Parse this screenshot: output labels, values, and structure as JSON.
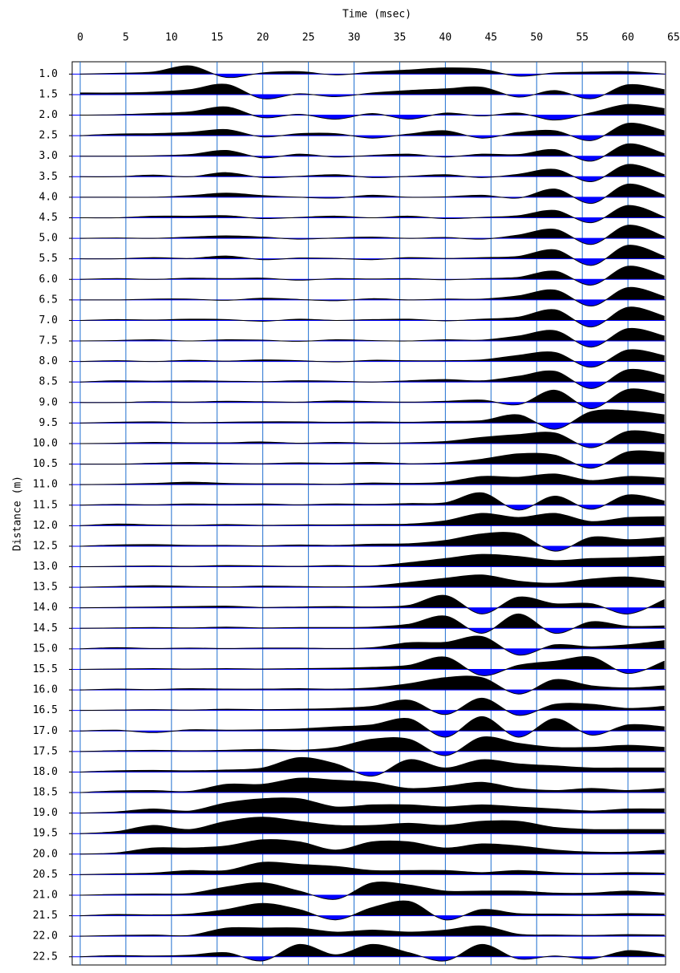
{
  "chart_data": {
    "type": "wiggle",
    "title": "Time (msec)",
    "y_label": "Distance (m)",
    "x": [
      0,
      4,
      8,
      12,
      16,
      20,
      24,
      28,
      32,
      36,
      40,
      44,
      48,
      52,
      56,
      60,
      64
    ],
    "xlim": [
      0,
      65
    ],
    "xticks": [
      0,
      5,
      10,
      15,
      20,
      25,
      30,
      35,
      40,
      45,
      50,
      55,
      60,
      65
    ],
    "ylim": [
      0.7,
      22.7
    ],
    "y_inverted": true,
    "yticks": [
      {
        "value": 1,
        "label": "1.0"
      },
      1.5,
      {
        "value": 2,
        "label": "2.0"
      },
      2.5,
      {
        "value": 3,
        "label": "3.0"
      },
      3.5,
      {
        "value": 4,
        "label": "4.0"
      },
      4.5,
      {
        "value": 5,
        "label": "5.0"
      },
      5.5,
      {
        "value": 6,
        "label": "6.0"
      },
      6.5,
      {
        "value": 7,
        "label": "7.0"
      },
      7.5,
      {
        "value": 8,
        "label": "8.0"
      },
      8.5,
      {
        "value": 9,
        "label": "9.0"
      },
      9.5,
      {
        "value": 10,
        "label": "10.0"
      },
      10.5,
      {
        "value": 11,
        "label": "11.0"
      },
      11.5,
      {
        "value": 12,
        "label": "12.0"
      },
      12.5,
      {
        "value": 13,
        "label": "13.0"
      },
      13.5,
      {
        "value": 14,
        "label": "14.0"
      },
      14.5,
      {
        "value": 15,
        "label": "15.0"
      },
      15.5,
      {
        "value": 16,
        "label": "16.0"
      },
      16.5,
      {
        "value": 17,
        "label": "17.0"
      },
      17.5,
      {
        "value": 18,
        "label": "18.0"
      },
      18.5,
      {
        "value": 19,
        "label": "19.0"
      },
      19.5,
      {
        "value": 20,
        "label": "20.0"
      },
      20.5,
      {
        "value": 21,
        "label": "21.0"
      },
      21.5,
      {
        "value": 22,
        "label": "22.0"
      },
      22.5
    ],
    "grid": true,
    "grid_color": "#1f6fd0",
    "baseline_color": "#0000ff",
    "positive_color": "#000000",
    "negative_color": "#0000ff",
    "line_color": "#000000",
    "traces": [
      {
        "distance": 1,
        "values": [
          0,
          0.02,
          0.05,
          0.2,
          -0.08,
          0.03,
          0.06,
          -0.02,
          0.05,
          0.1,
          0.15,
          0.12,
          -0.05,
          0.03,
          0.05,
          0.06,
          0
        ]
      },
      {
        "distance": 1.5,
        "values": [
          0.04,
          0.04,
          0.06,
          0.12,
          0.25,
          -0.1,
          0.02,
          -0.05,
          0.04,
          0.1,
          0.14,
          0.18,
          -0.06,
          0.1,
          -0.1,
          0.24,
          0.12
        ]
      },
      {
        "distance": 2,
        "values": [
          0,
          0.01,
          0.04,
          0.08,
          0.2,
          -0.06,
          0.02,
          -0.1,
          0.04,
          -0.1,
          0.05,
          -0.02,
          0.05,
          -0.12,
          0.06,
          0.26,
          0.16
        ]
      },
      {
        "distance": 2.5,
        "values": [
          0,
          0.04,
          0.05,
          0.08,
          0.15,
          -0.03,
          0.05,
          0.05,
          -0.06,
          0.04,
          0.12,
          -0.06,
          0.08,
          0.12,
          -0.12,
          0.3,
          0.12
        ]
      },
      {
        "distance": 3,
        "values": [
          0,
          0,
          0.01,
          0.04,
          0.14,
          -0.04,
          0.05,
          -0.02,
          0.02,
          0.05,
          -0.02,
          0.05,
          0.04,
          0.16,
          -0.12,
          0.3,
          0.06
        ]
      },
      {
        "distance": 3.5,
        "values": [
          0,
          0,
          0.04,
          0,
          0.1,
          -0.02,
          0.01,
          0.05,
          -0.02,
          0.01,
          0.05,
          -0.02,
          0.06,
          0.18,
          -0.12,
          0.3,
          0.05
        ]
      },
      {
        "distance": 4,
        "values": [
          0,
          0,
          0,
          0.04,
          0.1,
          0.04,
          0,
          -0.02,
          0.05,
          0,
          0.01,
          0.05,
          -0.02,
          0.2,
          -0.15,
          0.32,
          0.05
        ]
      },
      {
        "distance": 4.5,
        "values": [
          0,
          0,
          0.04,
          0.04,
          0.05,
          -0.02,
          0.01,
          0.04,
          0,
          0.04,
          -0.02,
          0.01,
          0.05,
          0.18,
          -0.12,
          0.3,
          0.02
        ]
      },
      {
        "distance": 5,
        "values": [
          0,
          0.01,
          0,
          0.03,
          0.06,
          0.03,
          -0.02,
          0.01,
          0.03,
          0,
          0.02,
          -0.02,
          0.08,
          0.22,
          -0.15,
          0.32,
          0.04
        ]
      },
      {
        "distance": 5.5,
        "values": [
          0,
          0,
          0.03,
          0.01,
          0.07,
          -0.02,
          0.02,
          0.01,
          -0.02,
          0.03,
          0.01,
          0.03,
          0.06,
          0.22,
          -0.16,
          0.33,
          0.06
        ]
      },
      {
        "distance": 6,
        "values": [
          0,
          0.02,
          0,
          0.03,
          0.02,
          0.03,
          -0.02,
          0.02,
          0.01,
          0.02,
          -0.01,
          0.02,
          0.05,
          0.2,
          -0.14,
          0.32,
          0.08
        ]
      },
      {
        "distance": 6.5,
        "values": [
          0,
          0,
          0.02,
          0.02,
          -0.01,
          0.04,
          0.01,
          -0.02,
          0.03,
          0,
          0.02,
          0.02,
          0.1,
          0.24,
          -0.15,
          0.3,
          0.08
        ]
      },
      {
        "distance": 7,
        "values": [
          0,
          0.02,
          0.01,
          0.03,
          0.02,
          -0.02,
          0.03,
          0,
          0.02,
          0.03,
          -0.01,
          0.03,
          0.08,
          0.26,
          -0.16,
          0.32,
          0.1
        ]
      },
      {
        "distance": 7.5,
        "values": [
          0,
          0.01,
          0.03,
          0,
          0.03,
          0.02,
          -0.01,
          0.03,
          0.01,
          0,
          0.03,
          0.02,
          0.12,
          0.25,
          -0.15,
          0.3,
          0.12
        ]
      },
      {
        "distance": 8,
        "values": [
          0,
          0.02,
          0,
          0.03,
          0.01,
          0.04,
          0.02,
          -0.01,
          0.03,
          0.02,
          0.02,
          0.04,
          0.15,
          0.22,
          -0.14,
          0.28,
          0.14
        ]
      },
      {
        "distance": 8.5,
        "values": [
          0,
          0.03,
          0.02,
          0.03,
          0.02,
          0.01,
          0.03,
          0.02,
          0,
          0.03,
          0.06,
          0.03,
          0.14,
          0.26,
          -0.16,
          0.3,
          0.16
        ]
      },
      {
        "distance": 9,
        "values": [
          0,
          0,
          0.02,
          0.01,
          0.03,
          0.02,
          0.01,
          0.04,
          0.02,
          0.01,
          0.03,
          0.06,
          -0.05,
          0.3,
          -0.15,
          0.32,
          0.2
        ]
      },
      {
        "distance": 9.5,
        "values": [
          0,
          0.02,
          0.03,
          0.01,
          0.02,
          0.03,
          0.03,
          0.02,
          0.03,
          0.02,
          0.04,
          0.06,
          0.2,
          -0.15,
          0.28,
          0.3,
          0.2
        ]
      },
      {
        "distance": 10,
        "values": [
          0,
          0.01,
          0.03,
          0.02,
          0.02,
          0.04,
          0.01,
          0.03,
          0.01,
          0.02,
          0.05,
          0.15,
          0.22,
          0.26,
          -0.1,
          0.3,
          0.22
        ]
      },
      {
        "distance": 10.5,
        "values": [
          0,
          0,
          0.02,
          0.04,
          0.02,
          0.01,
          0.03,
          0.02,
          0.04,
          0.01,
          0.03,
          0.12,
          0.25,
          0.22,
          -0.1,
          0.3,
          0.28
        ]
      },
      {
        "distance": 11,
        "values": [
          0,
          0.01,
          0.03,
          0.06,
          0.03,
          0.02,
          0.02,
          0.01,
          0.04,
          0.03,
          0.06,
          0.2,
          0.18,
          0.26,
          0.1,
          0.2,
          0.16
        ]
      },
      {
        "distance": 11.5,
        "values": [
          0,
          0.02,
          0.01,
          0.03,
          0.02,
          0.03,
          0.01,
          0.03,
          0.02,
          0.04,
          0.06,
          0.3,
          -0.12,
          0.22,
          -0.1,
          0.25,
          0.1
        ]
      },
      {
        "distance": 12,
        "values": [
          0,
          0.04,
          0.02,
          0.01,
          0.03,
          0.01,
          0.02,
          0.02,
          0.03,
          0.04,
          0.12,
          0.3,
          0.2,
          0.3,
          0.1,
          0.2,
          0.22
        ]
      },
      {
        "distance": 12.5,
        "values": [
          0,
          0.03,
          0.04,
          0.02,
          0.02,
          0.01,
          0.03,
          0.02,
          0.05,
          0.06,
          0.14,
          0.3,
          0.3,
          -0.12,
          0.22,
          0.16,
          0.22
        ]
      },
      {
        "distance": 13,
        "values": [
          0,
          0.01,
          0.02,
          0.01,
          0.03,
          0.02,
          0.01,
          0.03,
          0.02,
          0.1,
          0.2,
          0.3,
          0.25,
          0.15,
          0.2,
          0.22,
          0.26
        ]
      },
      {
        "distance": 13.5,
        "values": [
          0,
          0.02,
          0.04,
          0.02,
          0.01,
          0.03,
          0.02,
          0.01,
          0.03,
          0.12,
          0.22,
          0.3,
          0.15,
          0.1,
          0.2,
          0.25,
          0.15
        ]
      },
      {
        "distance": 14,
        "values": [
          0,
          0.01,
          0.02,
          0.03,
          0.04,
          0.01,
          0.02,
          0.03,
          0.02,
          0.06,
          0.3,
          -0.15,
          0.26,
          0.1,
          0.1,
          -0.15,
          0.2
        ]
      },
      {
        "distance": 14.5,
        "values": [
          0,
          0.01,
          0.02,
          0.01,
          0.03,
          0.01,
          0.02,
          0.02,
          0.03,
          0.1,
          0.3,
          -0.12,
          0.35,
          -0.12,
          0.16,
          0.05,
          0.06
        ]
      },
      {
        "distance": 15,
        "values": [
          0,
          0.03,
          0.01,
          0.02,
          0.01,
          0.02,
          0.02,
          0.01,
          0.03,
          0.15,
          0.16,
          0.3,
          -0.15,
          0.1,
          0.05,
          0.1,
          0.2
        ]
      },
      {
        "distance": 15.5,
        "values": [
          0,
          0.01,
          0.02,
          0.01,
          0.02,
          0.01,
          0.02,
          0.03,
          0.05,
          0.1,
          0.3,
          -0.15,
          0.1,
          0.2,
          0.3,
          -0.1,
          0.2
        ]
      },
      {
        "distance": 16,
        "values": [
          0,
          0.02,
          0.01,
          0.03,
          0.02,
          0.02,
          0.03,
          0.02,
          0.05,
          0.15,
          0.3,
          0.3,
          -0.1,
          0.25,
          0.1,
          0.05,
          0.1
        ]
      },
      {
        "distance": 16.5,
        "values": [
          0,
          0.01,
          0.02,
          0.01,
          0.03,
          0.02,
          0.03,
          0.05,
          0.1,
          0.25,
          -0.1,
          0.3,
          -0.12,
          0.15,
          0.15,
          0.05,
          0.1
        ]
      },
      {
        "distance": 17,
        "values": [
          0,
          0.02,
          -0.04,
          0.03,
          0.02,
          0.03,
          0.05,
          0.1,
          0.15,
          0.3,
          -0.15,
          0.35,
          -0.15,
          0.3,
          -0.1,
          0.15,
          0.1
        ]
      },
      {
        "distance": 17.5,
        "values": [
          0,
          0.02,
          0.03,
          0.02,
          0.03,
          0.05,
          0.03,
          0.1,
          0.3,
          0.3,
          -0.1,
          0.35,
          0.2,
          0.1,
          0.1,
          0.15,
          0.1
        ]
      },
      {
        "distance": 18,
        "values": [
          0,
          0.03,
          0.04,
          0.03,
          0.05,
          0.1,
          0.35,
          0.2,
          -0.1,
          0.3,
          0.1,
          0.3,
          0.2,
          0.15,
          0.1,
          0.1,
          0.1
        ]
      },
      {
        "distance": 18.5,
        "values": [
          0,
          0.04,
          0.05,
          0.03,
          0.2,
          0.2,
          0.35,
          0.3,
          0.25,
          0.1,
          0.15,
          0.25,
          0.1,
          0.05,
          0.1,
          0.05,
          0.1
        ]
      },
      {
        "distance": 19,
        "values": [
          0,
          0.03,
          0.1,
          0.05,
          0.25,
          0.35,
          0.35,
          0.15,
          0.2,
          0.2,
          0.15,
          0.2,
          0.15,
          0.1,
          0.05,
          0.1,
          0.1
        ]
      },
      {
        "distance": 19.5,
        "values": [
          0,
          0.05,
          0.2,
          0.1,
          0.3,
          0.4,
          0.3,
          0.2,
          0.2,
          0.25,
          0.2,
          0.3,
          0.3,
          0.15,
          0.1,
          0.1,
          0.1
        ]
      },
      {
        "distance": 20,
        "values": [
          0,
          0.03,
          0.15,
          0.15,
          0.2,
          0.35,
          0.3,
          0.1,
          0.3,
          0.3,
          0.15,
          0.25,
          0.2,
          0.1,
          0.05,
          0.05,
          0.1
        ]
      },
      {
        "distance": 20.5,
        "values": [
          0,
          0.02,
          0.04,
          0.1,
          0.1,
          0.3,
          0.25,
          0.2,
          0.1,
          0.1,
          0.1,
          0.05,
          0.1,
          0.05,
          0.03,
          0.05,
          0.04
        ]
      },
      {
        "distance": 21,
        "values": [
          0,
          0.02,
          0.03,
          0.04,
          0.2,
          0.3,
          0.1,
          -0.1,
          0.3,
          0.25,
          0.1,
          0.1,
          0.1,
          0.05,
          0.05,
          0.1,
          0.05
        ]
      },
      {
        "distance": 21.5,
        "values": [
          0,
          0.03,
          0.02,
          0.04,
          0.15,
          0.3,
          0.15,
          -0.1,
          0.2,
          0.35,
          -0.1,
          0.15,
          0.05,
          0.04,
          0.03,
          0.05,
          0.04
        ]
      },
      {
        "distance": 22,
        "values": [
          0,
          0.02,
          0.03,
          0.02,
          0.2,
          0.2,
          0.2,
          0.1,
          0.15,
          0.1,
          0.15,
          0.25,
          0.05,
          0.03,
          0.02,
          0.04,
          0.03
        ]
      },
      {
        "distance": 22.5,
        "values": [
          0,
          0.03,
          0.02,
          0.04,
          0.1,
          -0.1,
          0.3,
          0.05,
          0.3,
          0.1,
          -0.1,
          0.3,
          -0.05,
          0.02,
          -0.05,
          0.15,
          0.05
        ]
      }
    ]
  }
}
